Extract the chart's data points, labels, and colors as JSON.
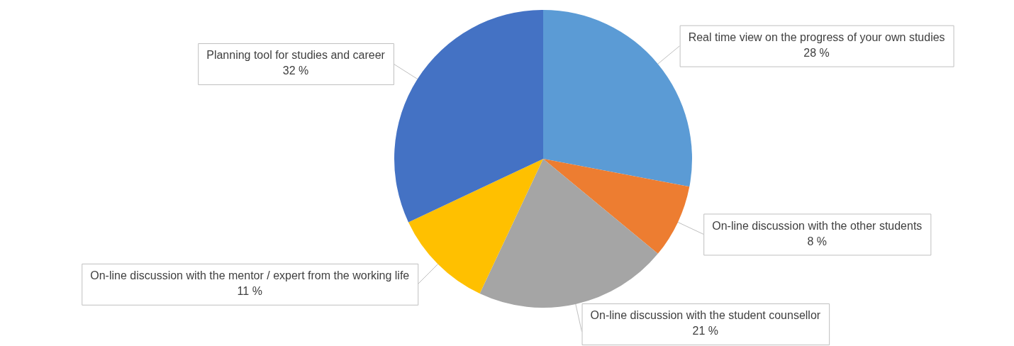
{
  "chart_data": {
    "type": "pie",
    "categories": [
      "Real time view on the progress of your own studies",
      "On-line discussion with the other students",
      "On-line discussion with the student counsellor",
      "On-line discussion with the mentor / expert from the working life",
      "Planning tool for studies and career"
    ],
    "values": [
      28,
      8,
      21,
      11,
      32
    ],
    "value_labels": [
      "28 %",
      "8 %",
      "21 %",
      "11 %",
      "32 %"
    ],
    "colors": [
      "#5b9bd5",
      "#ed7d31",
      "#a5a5a5",
      "#ffc000",
      "#4472c4"
    ],
    "legend": false
  }
}
